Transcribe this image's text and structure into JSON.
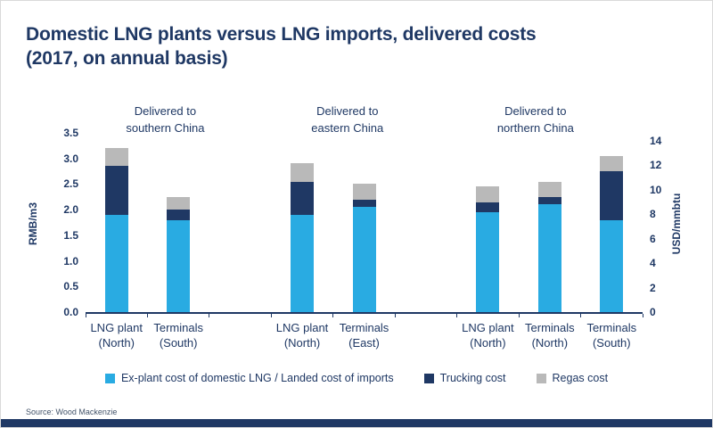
{
  "page": {
    "source_note": "Source: Wood Mackenzie",
    "accent_color": "#1F3864"
  },
  "chart_data": {
    "type": "bar",
    "stacked": true,
    "grid": false,
    "legend_position": "bottom",
    "title": "Domestic LNG plants versus LNG imports, delivered costs (2017, on annual basis)",
    "title_lines": [
      "Domestic LNG plants versus LNG imports, delivered costs",
      "(2017, on annual basis)"
    ],
    "axis_left": {
      "label": "RMB/m3",
      "min": 0,
      "max": 3.5,
      "step": 0.5,
      "ticks": [
        "0.0",
        "0.5",
        "1.0",
        "1.5",
        "2.0",
        "2.5",
        "3.0",
        "3.5"
      ]
    },
    "axis_right": {
      "label": "USD/mmbtu",
      "min": 0,
      "max": 14,
      "step": 2,
      "ticks": [
        "0",
        "2",
        "4",
        "6",
        "8",
        "10",
        "12",
        "14"
      ]
    },
    "categories": [
      [
        "LNG plant",
        "(North)"
      ],
      [
        "Terminals",
        "(South)"
      ],
      [
        "LNG plant",
        "(North)"
      ],
      [
        "Terminals",
        "(East)"
      ],
      [
        "LNG plant",
        "(North)"
      ],
      [
        "Terminals",
        "(North)"
      ],
      [
        "Terminals",
        "(South)"
      ]
    ],
    "group_of_category": [
      0,
      0,
      1,
      1,
      2,
      2,
      2
    ],
    "annotations": [
      {
        "group": 0,
        "lines": [
          "Delivered to",
          "southern China"
        ]
      },
      {
        "group": 1,
        "lines": [
          "Delivered to",
          "eastern China"
        ]
      },
      {
        "group": 2,
        "lines": [
          "Delivered to",
          "northern China"
        ]
      }
    ],
    "series": [
      {
        "name": "Ex-plant cost of domestic LNG / Landed cost of imports",
        "color": "#29ABE2",
        "values": [
          1.9,
          1.8,
          1.9,
          2.05,
          1.95,
          2.1,
          1.8
        ]
      },
      {
        "name": "Trucking cost",
        "color": "#1F3864",
        "values": [
          0.95,
          0.2,
          0.65,
          0.15,
          0.2,
          0.15,
          0.95
        ]
      },
      {
        "name": "Regas cost",
        "color": "#B9B9B9",
        "values": [
          0.35,
          0.25,
          0.35,
          0.3,
          0.3,
          0.3,
          0.3
        ]
      }
    ]
  }
}
